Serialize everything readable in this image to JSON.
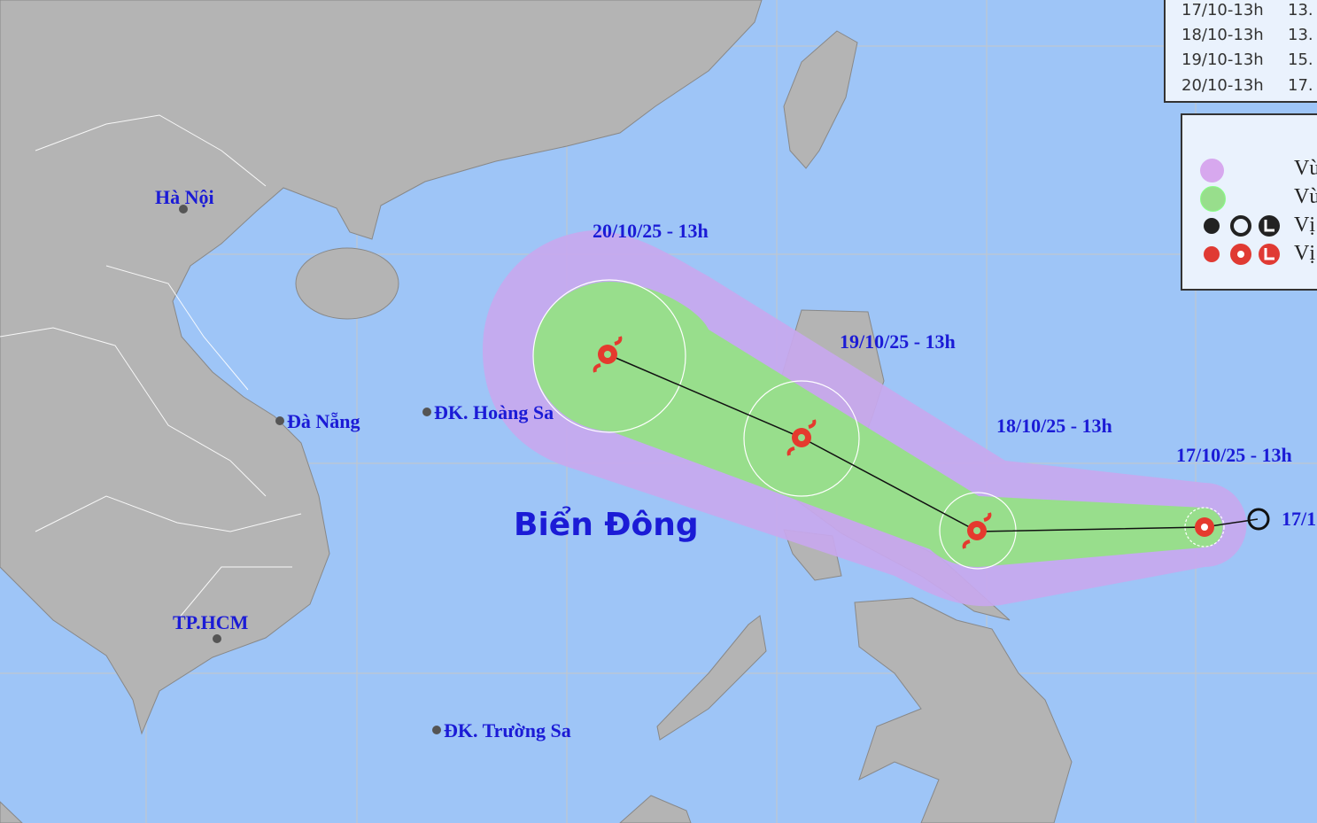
{
  "map": {
    "sea_label": "Biển Đông",
    "cities": [
      {
        "name": "Hà Nội"
      },
      {
        "name": "Đà Nẵng"
      },
      {
        "name": "TP.HCM"
      },
      {
        "name": "ĐK. Hoàng Sa"
      },
      {
        "name": "ĐK. Trường Sa"
      }
    ],
    "track_labels": [
      "20/10/25 - 13h",
      "19/10/25 - 13h",
      "18/10/25 - 13h",
      "17/10/25 - 13h",
      "17/1"
    ],
    "colors": {
      "sea": "#9ec5f7",
      "land": "#b4b4b4",
      "risk_zone": "#c8a8ee",
      "wind_zone": "#98de8c",
      "track_label": "#1b1bd6",
      "storm_symbol": "#e53a2e"
    }
  },
  "forecast_table": {
    "rows": [
      {
        "time": "17/10-13h",
        "value": "13."
      },
      {
        "time": "18/10-13h",
        "value": "13."
      },
      {
        "time": "19/10-13h",
        "value": "15."
      },
      {
        "time": "20/10-13h",
        "value": "17."
      }
    ]
  },
  "legend": {
    "items": [
      {
        "icon": "purple-dot",
        "label": "Vù"
      },
      {
        "icon": "green-dot",
        "label": "Vù"
      },
      {
        "icon": "black-storm-symbols",
        "label": "Vị"
      },
      {
        "icon": "red-storm-symbols",
        "label": "Vị"
      }
    ]
  }
}
